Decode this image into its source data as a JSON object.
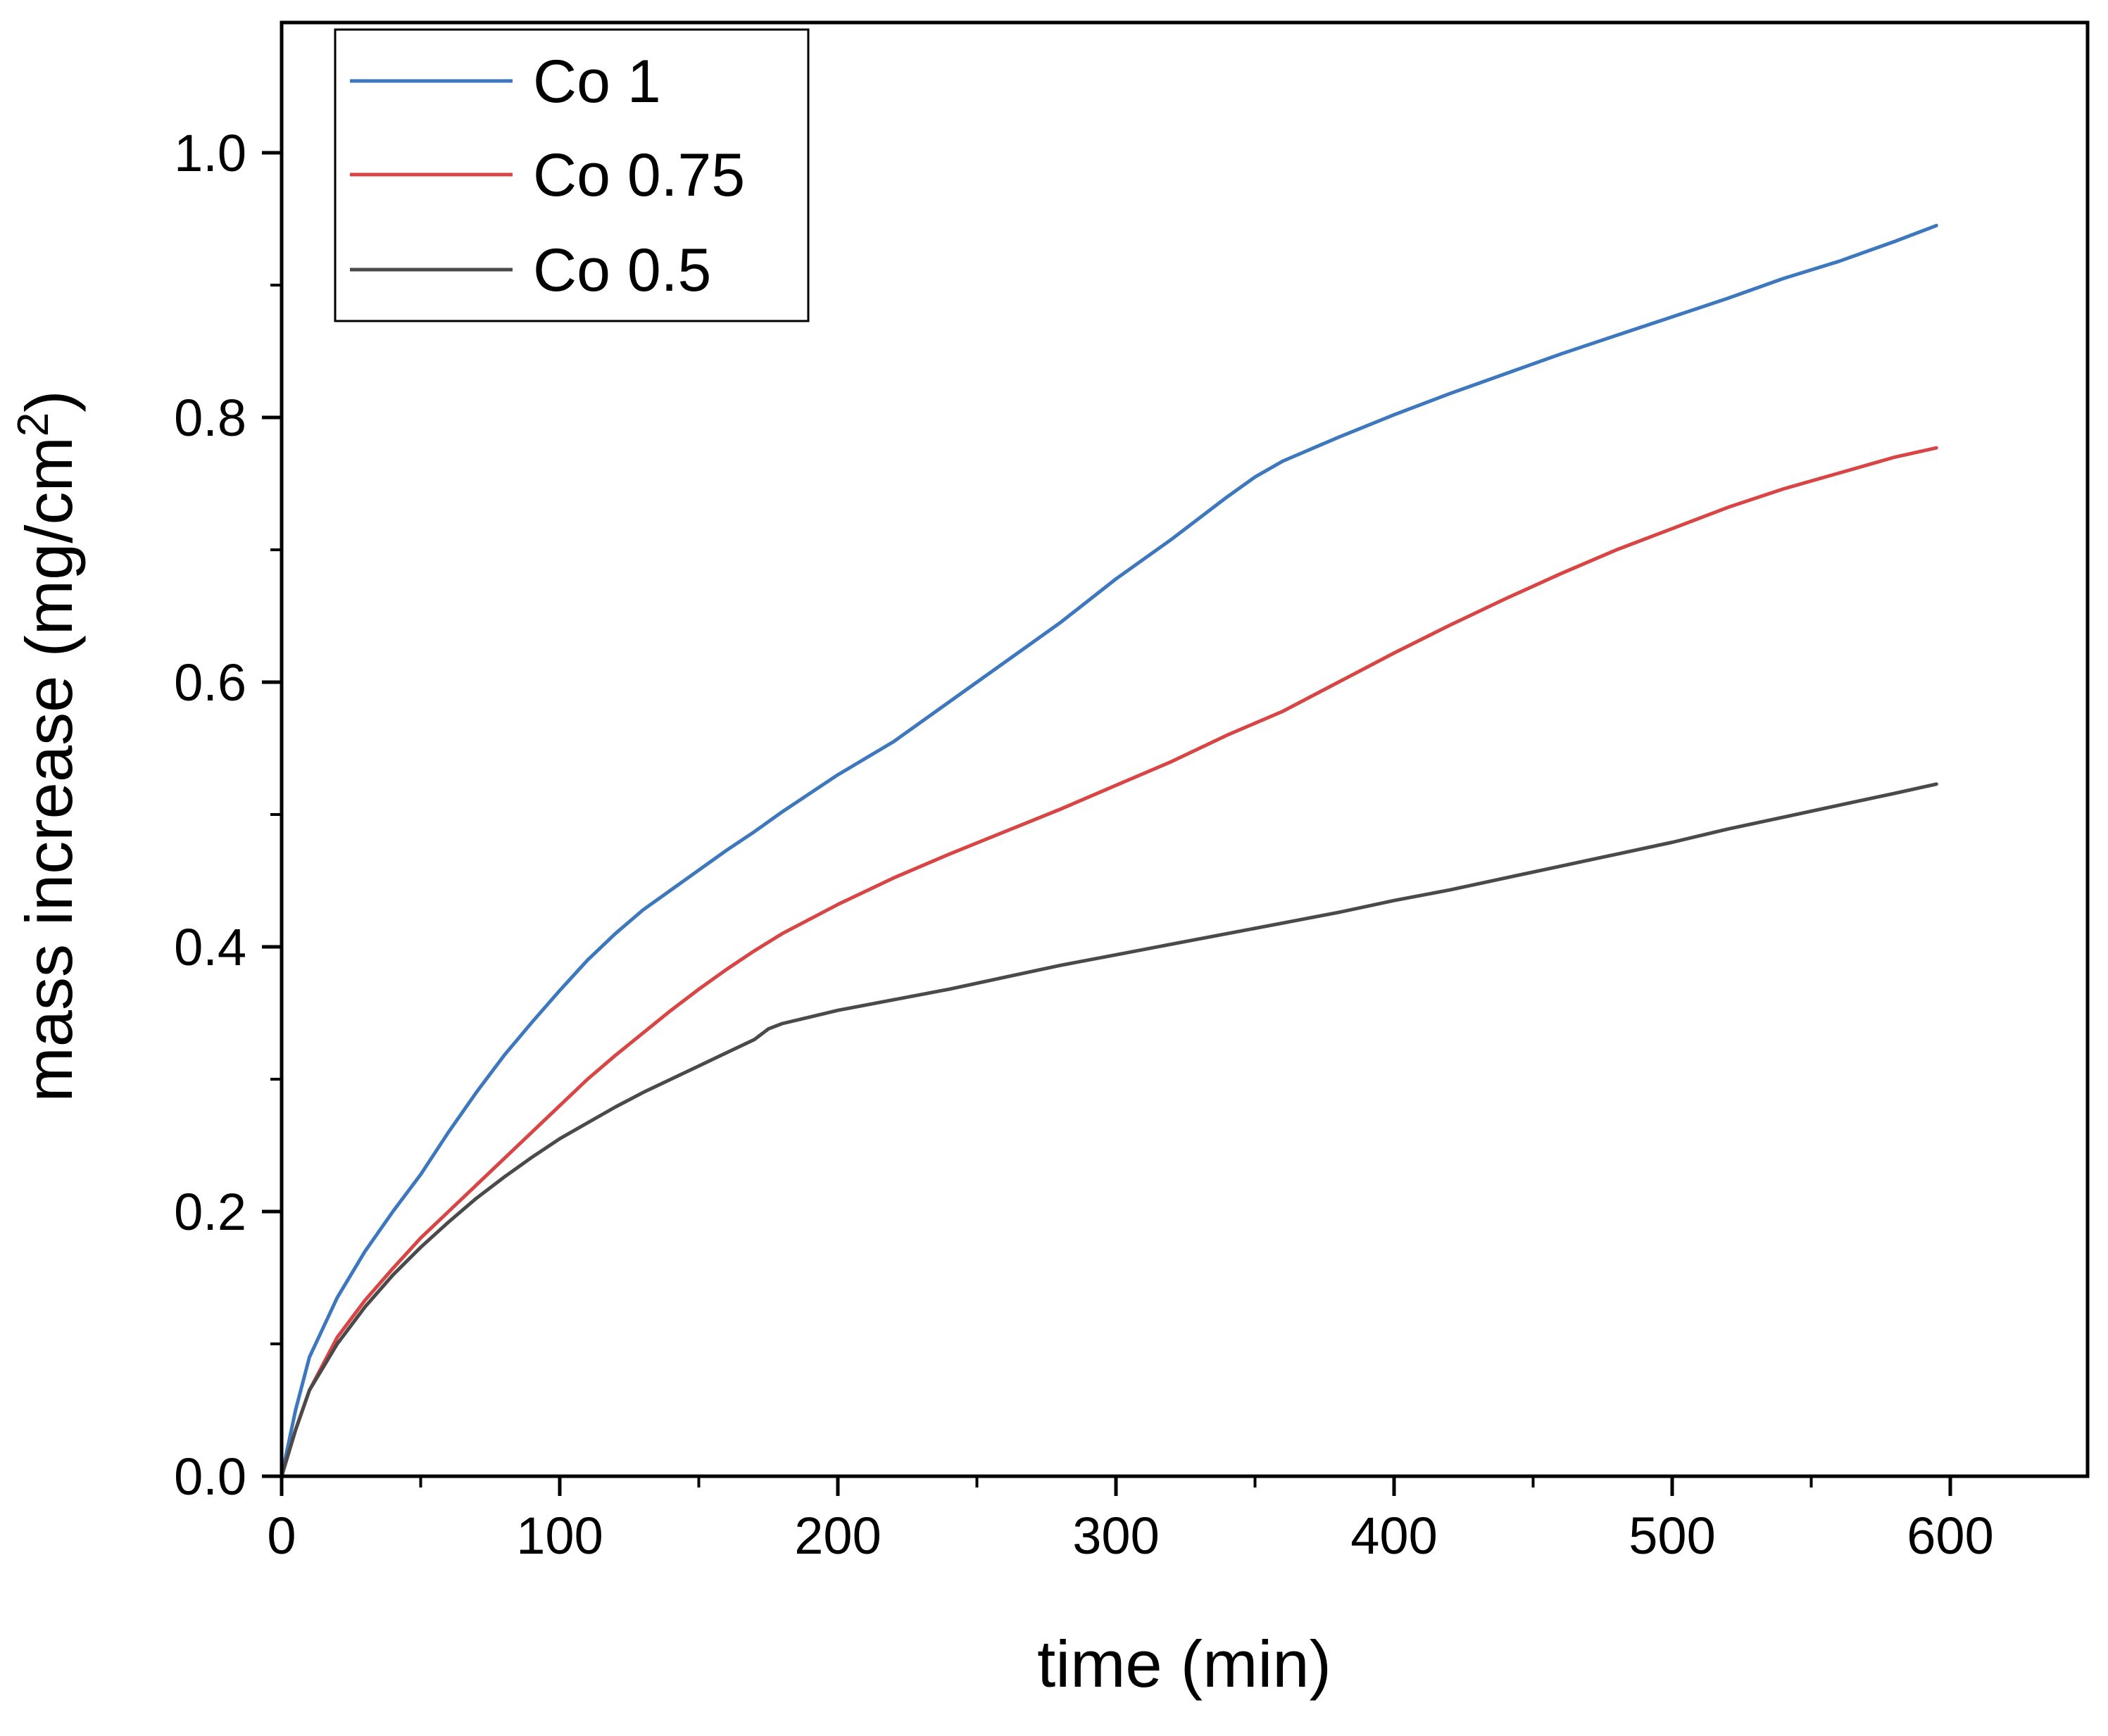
{
  "chart_data": {
    "type": "line",
    "title": "",
    "xlabel": "time (min)",
    "ylabel": {
      "main": "mass increase (mg/cm",
      "superscript": "2",
      "end": ")"
    },
    "xlim": [
      0,
      650
    ],
    "ylim": [
      0,
      1.1
    ],
    "x_major_ticks": [
      0,
      100,
      200,
      300,
      400,
      500,
      600
    ],
    "x_tick_labels": [
      "0",
      "100",
      "200",
      "300",
      "400",
      "500",
      "600"
    ],
    "x_minor_ticks": [
      50,
      150,
      250,
      350,
      450,
      550,
      650
    ],
    "y_major_ticks": [
      0,
      0.2,
      0.4,
      0.6,
      0.8,
      1.0
    ],
    "y_tick_labels": [
      "0.0",
      "0.2",
      "0.4",
      "0.6",
      "0.8",
      "1.0"
    ],
    "y_minor_ticks": [
      0.1,
      0.3,
      0.5,
      0.7,
      0.9,
      1.1
    ],
    "grid": false,
    "legend_position": "top-left",
    "series": [
      {
        "name": "Co 1",
        "color": "#3d77bd",
        "x": [
          0,
          5,
          10,
          20,
          30,
          40,
          50,
          60,
          70,
          80,
          90,
          100,
          110,
          120,
          130,
          140,
          150,
          160,
          170,
          180,
          200,
          220,
          240,
          260,
          280,
          300,
          320,
          340,
          350,
          360,
          380,
          400,
          420,
          440,
          460,
          480,
          500,
          520,
          540,
          560,
          580,
          595
        ],
        "y": [
          0,
          0.05,
          0.09,
          0.135,
          0.17,
          0.2,
          0.228,
          0.26,
          0.29,
          0.318,
          0.343,
          0.367,
          0.39,
          0.41,
          0.428,
          0.443,
          0.458,
          0.473,
          0.487,
          0.502,
          0.53,
          0.555,
          0.585,
          0.615,
          0.645,
          0.678,
          0.708,
          0.74,
          0.755,
          0.767,
          0.785,
          0.802,
          0.818,
          0.833,
          0.848,
          0.862,
          0.876,
          0.89,
          0.905,
          0.918,
          0.933,
          0.945
        ]
      },
      {
        "name": "Co 0.75",
        "color": "#d84545",
        "x": [
          0,
          5,
          10,
          20,
          30,
          40,
          50,
          60,
          70,
          80,
          90,
          100,
          110,
          120,
          130,
          140,
          150,
          160,
          170,
          180,
          200,
          220,
          240,
          260,
          280,
          300,
          320,
          340,
          360,
          380,
          400,
          420,
          440,
          460,
          480,
          500,
          520,
          540,
          560,
          580,
          595
        ],
        "y": [
          0,
          0.035,
          0.065,
          0.105,
          0.133,
          0.157,
          0.18,
          0.2,
          0.22,
          0.24,
          0.26,
          0.28,
          0.3,
          0.318,
          0.335,
          0.352,
          0.368,
          0.383,
          0.397,
          0.41,
          0.432,
          0.452,
          0.47,
          0.487,
          0.504,
          0.522,
          0.54,
          0.56,
          0.578,
          0.6,
          0.622,
          0.643,
          0.663,
          0.682,
          0.7,
          0.716,
          0.732,
          0.746,
          0.758,
          0.77,
          0.777
        ]
      },
      {
        "name": "Co 0.5",
        "color": "#4a4a4a",
        "x": [
          0,
          5,
          10,
          20,
          30,
          40,
          50,
          60,
          70,
          80,
          90,
          100,
          110,
          120,
          130,
          140,
          150,
          160,
          170,
          175,
          180,
          200,
          220,
          240,
          260,
          280,
          300,
          320,
          340,
          360,
          380,
          400,
          420,
          440,
          460,
          480,
          500,
          520,
          540,
          560,
          580,
          595
        ],
        "y": [
          0,
          0.035,
          0.065,
          0.1,
          0.128,
          0.152,
          0.173,
          0.192,
          0.21,
          0.226,
          0.241,
          0.255,
          0.267,
          0.279,
          0.29,
          0.3,
          0.31,
          0.32,
          0.33,
          0.338,
          0.342,
          0.352,
          0.36,
          0.368,
          0.377,
          0.386,
          0.394,
          0.402,
          0.41,
          0.418,
          0.426,
          0.435,
          0.443,
          0.452,
          0.461,
          0.47,
          0.479,
          0.489,
          0.498,
          0.507,
          0.516,
          0.523
        ]
      }
    ]
  }
}
